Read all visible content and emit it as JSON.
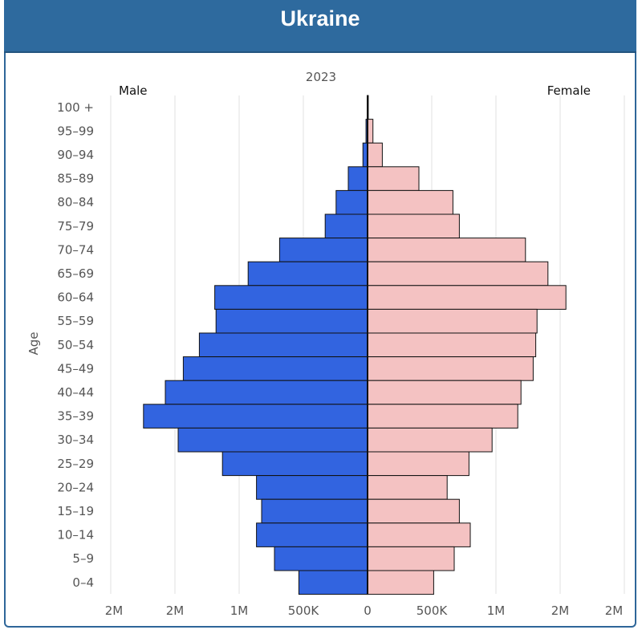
{
  "header": {
    "title": "Ukraine"
  },
  "chart_data": {
    "type": "bar",
    "subtype": "population-pyramid",
    "title": "2023",
    "ylabel": "Age",
    "left_label": "Male",
    "right_label": "Female",
    "categories": [
      "100 +",
      "95-99",
      "90-94",
      "85-89",
      "80-84",
      "75-79",
      "70-74",
      "65-69",
      "60-64",
      "55-59",
      "50-54",
      "45-49",
      "40-44",
      "35-39",
      "30-34",
      "25-29",
      "20-24",
      "15-19",
      "10-14",
      "5-9",
      "0-4"
    ],
    "category_labels": [
      "100 +",
      "95–99",
      "90–94",
      "85–89",
      "80–84",
      "75–79",
      "70–74",
      "65–69",
      "60–64",
      "55–59",
      "50–54",
      "45–49",
      "40–44",
      "35–39",
      "30–34",
      "25–29",
      "20–24",
      "15–19",
      "10–14",
      "5–9",
      "0–4"
    ],
    "series": [
      {
        "name": "Male",
        "color": "#3264e0",
        "values": [
          3000,
          12000,
          36000,
          150000,
          245000,
          330000,
          685000,
          930000,
          1190000,
          1180000,
          1310000,
          1435000,
          1575000,
          1745000,
          1475000,
          1130000,
          865000,
          825000,
          865000,
          725000,
          535000
        ]
      },
      {
        "name": "Female",
        "color": "#f4c2c2",
        "values": [
          6000,
          42000,
          115000,
          400000,
          665000,
          715000,
          1230000,
          1405000,
          1545000,
          1320000,
          1310000,
          1290000,
          1195000,
          1170000,
          970000,
          790000,
          620000,
          715000,
          800000,
          675000,
          515000
        ]
      }
    ],
    "xlim": [
      -2000000,
      2000000
    ],
    "xticks": [
      -2000000,
      -1500000,
      -1000000,
      -500000,
      0,
      500000,
      1000000,
      1500000,
      2000000
    ],
    "xtick_labels": [
      "2M",
      "2M",
      "1M",
      "500K",
      "0",
      "500K",
      "1M",
      "2M",
      "2M"
    ],
    "grid": "vertical",
    "legend": "none"
  }
}
